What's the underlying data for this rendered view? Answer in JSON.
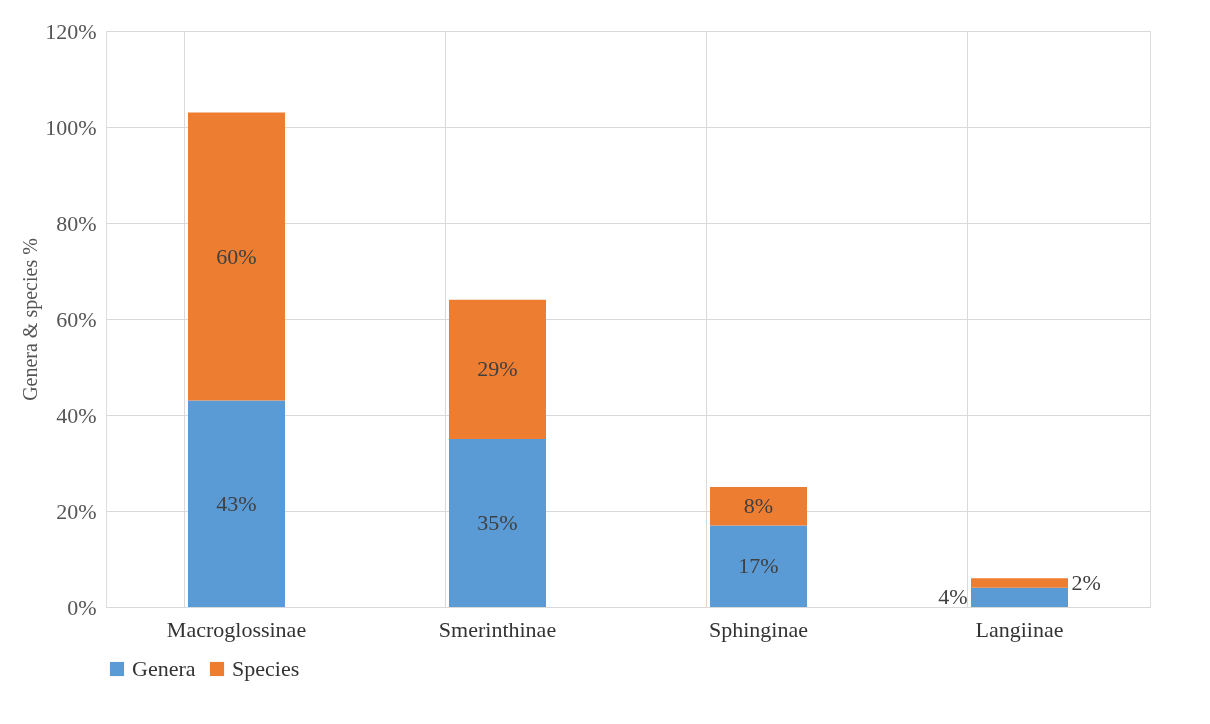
{
  "chart_data": {
    "type": "bar",
    "stacked": true,
    "ylabel": "Genera & species %",
    "categories": [
      "Macroglossinae",
      "Smerinthinae",
      "Sphinginae",
      "Langiinae"
    ],
    "series": [
      {
        "name": "Genera",
        "color": "#5b9bd5",
        "values": [
          43,
          35,
          17,
          4
        ],
        "value_labels": [
          "43%",
          "35%",
          "17%",
          "4%"
        ]
      },
      {
        "name": "Species",
        "color": "#ed7d31",
        "values": [
          60,
          29,
          8,
          2
        ],
        "value_labels": [
          "60%",
          "29%",
          "8%",
          "2%"
        ]
      }
    ],
    "ylim": [
      0,
      120
    ],
    "yticks": [
      {
        "value": 0,
        "label": "0%"
      },
      {
        "value": 20,
        "label": "20%"
      },
      {
        "value": 40,
        "label": "40%"
      },
      {
        "value": 60,
        "label": "60%"
      },
      {
        "value": 80,
        "label": "80%"
      },
      {
        "value": 100,
        "label": "100%"
      },
      {
        "value": 120,
        "label": "120%"
      }
    ],
    "grid": true,
    "legend": "bottom"
  }
}
